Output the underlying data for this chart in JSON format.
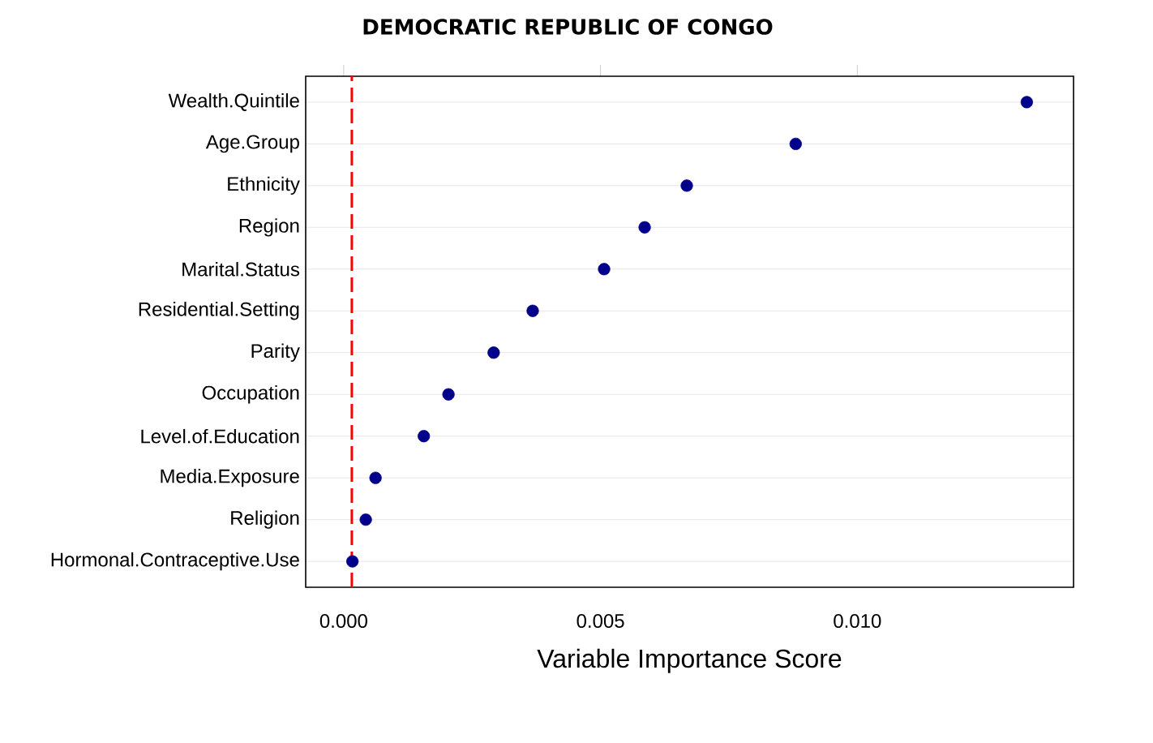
{
  "chart_data": {
    "type": "scatter",
    "title": "DEMOCRATIC REPUBLIC OF CONGO",
    "xlabel": "Variable Importance Score",
    "orientation": "horizontal",
    "categories": [
      "Wealth.Quintile",
      "Age.Group",
      "Ethnicity",
      "Region",
      "Marital.Status",
      "Residential.Setting",
      "Parity",
      "Occupation",
      "Level.of.Education",
      "Media.Exposure",
      "Religion",
      "Hormonal.Contraceptive.Use"
    ],
    "values": [
      0.0133,
      0.0088,
      0.00668,
      0.00586,
      0.00507,
      0.00368,
      0.00292,
      0.00204,
      0.00156,
      0.00062,
      0.00043,
      0.00017
    ],
    "color": "#00008b",
    "marker": "circle",
    "grid": "y",
    "xlim": [
      -0.00074,
      0.01421
    ],
    "xticks": [
      {
        "value": 0,
        "label": "0.000"
      },
      {
        "value": 0.005,
        "label": "0.005"
      },
      {
        "value": 0.01,
        "label": "0.010"
      }
    ],
    "ref_lines": [
      {
        "axis": "x",
        "value": 0.00016,
        "color": "#ff0000",
        "line_style": "dashed"
      }
    ]
  }
}
